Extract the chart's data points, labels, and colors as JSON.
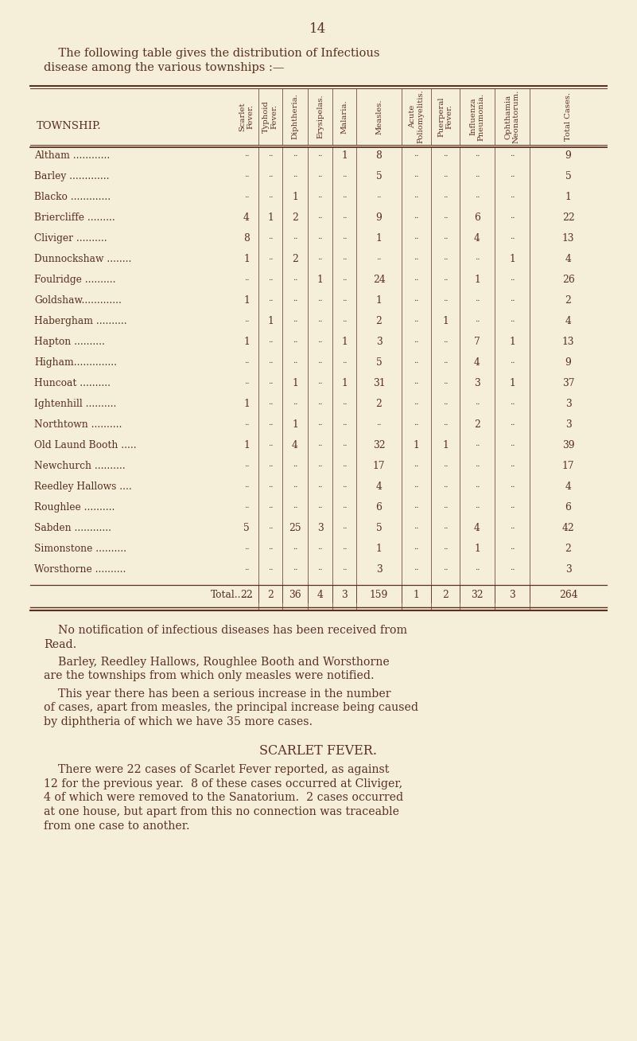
{
  "page_number": "14",
  "bg_color": "#f5eed8",
  "text_color": "#5a3020",
  "intro_text_1": "    The following table gives the distribution of Infectious",
  "intro_text_2": "disease among the various townships :—",
  "col_headers": [
    "Scarlet\nFever.",
    "Typhoid\nFever.",
    "Diphtheria.",
    "Erysipelas.",
    "Malaria.",
    "Measles.",
    "Acute\nPoliomyelitis.",
    "Puerperal\nFever.",
    "Influenza\nPneumonia.",
    "Ophthamia\nNeonatorum.",
    "Total Cases."
  ],
  "township_label": "TOWNSHIP.",
  "rows": [
    {
      "name": "Altham",
      "dots": "............",
      "values": [
        "",
        "",
        "",
        "",
        "1",
        "8",
        "",
        "",
        "",
        "",
        "9"
      ]
    },
    {
      "name": "Barley",
      "dots": ".............",
      "values": [
        "",
        "",
        "",
        "",
        "",
        "5",
        "",
        "",
        "",
        "",
        "5"
      ]
    },
    {
      "name": "Blacko",
      "dots": ".............",
      "values": [
        "",
        "",
        "1",
        "",
        "",
        "",
        "",
        "",
        "",
        "",
        "1"
      ]
    },
    {
      "name": "Briercliffe",
      "dots": ".........",
      "values": [
        "4",
        "1",
        "2",
        "",
        "",
        "9",
        "",
        "",
        "6",
        "",
        "22"
      ]
    },
    {
      "name": "Cliviger",
      "dots": "..........",
      "values": [
        "8",
        "",
        "",
        "",
        "",
        "1",
        "",
        "",
        "4",
        "",
        "13"
      ]
    },
    {
      "name": "Dunnockshaw",
      "dots": "........",
      "values": [
        "1",
        "",
        "2",
        "",
        "",
        "",
        "",
        "",
        "",
        "1",
        "4"
      ]
    },
    {
      "name": "Foulridge",
      "dots": "..........",
      "values": [
        "",
        "",
        "",
        "1",
        "",
        "24",
        "",
        "",
        "1",
        "",
        "26"
      ]
    },
    {
      "name": "Goldshaw.............",
      "dots": "",
      "values": [
        "1",
        "",
        "",
        "",
        "",
        "1",
        "",
        "",
        "",
        "",
        "2"
      ]
    },
    {
      "name": "Habergham",
      "dots": "..........",
      "values": [
        "",
        "1",
        "",
        "",
        "",
        "2",
        "",
        "1",
        "",
        "",
        "4"
      ]
    },
    {
      "name": "Hapton",
      "dots": "..........",
      "values": [
        "1",
        "",
        "",
        "",
        "1",
        "3",
        "",
        "",
        "7",
        "1",
        "13"
      ]
    },
    {
      "name": "Higham..............",
      "dots": "",
      "values": [
        "",
        "",
        "",
        "",
        "",
        "5",
        "",
        "",
        "4",
        "",
        "9"
      ]
    },
    {
      "name": "Huncoat",
      "dots": "..........",
      "values": [
        "",
        "",
        "1",
        "",
        "1",
        "31",
        "",
        "",
        "3",
        "1",
        "37"
      ]
    },
    {
      "name": "Ightenhill",
      "dots": "..........",
      "values": [
        "1",
        "",
        "",
        "",
        "",
        "2",
        "",
        "",
        "",
        "",
        "3"
      ]
    },
    {
      "name": "Northtown",
      "dots": "..........",
      "values": [
        "",
        "",
        "1",
        "",
        "",
        "",
        "",
        "",
        "2",
        "",
        "3"
      ]
    },
    {
      "name": "Old Laund Booth",
      "dots": ".....",
      "values": [
        "1",
        "",
        "4",
        "",
        "",
        "32",
        "1",
        "1",
        "",
        "",
        "39"
      ]
    },
    {
      "name": "Newchurch",
      "dots": "..........",
      "values": [
        "",
        "",
        "",
        "",
        "",
        "17",
        "",
        "",
        "",
        "",
        "17"
      ]
    },
    {
      "name": "Reedley Hallows",
      "dots": "....",
      "values": [
        "",
        "",
        "",
        "",
        "",
        "4",
        "",
        "",
        "",
        "",
        "4"
      ]
    },
    {
      "name": "Roughlee",
      "dots": "..........",
      "values": [
        "",
        "",
        "",
        "",
        "",
        "6",
        "",
        "",
        "",
        "",
        "6"
      ]
    },
    {
      "name": "Sabden",
      "dots": "............",
      "values": [
        "5",
        "",
        "25",
        "3",
        "",
        "5",
        "",
        "",
        "4",
        "",
        "42"
      ]
    },
    {
      "name": "Simonstone",
      "dots": "..........",
      "values": [
        "",
        "",
        "",
        "",
        "",
        "1",
        "",
        "",
        "1",
        "",
        "2"
      ]
    },
    {
      "name": "Worsthorne",
      "dots": "..........",
      "values": [
        "",
        "",
        "",
        "",
        "",
        "3",
        "",
        "",
        "",
        "",
        "3"
      ]
    }
  ],
  "total_row": {
    "values": [
      "22",
      "2",
      "36",
      "4",
      "3",
      "159",
      "1",
      "2",
      "32",
      "3",
      "264"
    ]
  },
  "footnote1": "    No notification of infectious diseases has been received from\nRead.",
  "footnote2": "    Barley, Reedley Hallows, Roughlee Booth and Worsthorne\nare the townships from which only measles were notified.",
  "footnote3": "    This year there has been a serious increase in the number\nof cases, apart from measles, the principal increase being caused\nby diphtheria of which we have 35 more cases.",
  "scarlet_fever_heading": "SCARLET FEVER.",
  "scarlet_fever_para": "    There were 22 cases of Scarlet Fever reported, as against\n12 for the previous year.  8 of these cases occurred at Cliviger,\n4 of which were removed to the Sanatorium.  2 cases occurred\nat one house, but apart from this no connection was traceable\nfrom one case to another."
}
